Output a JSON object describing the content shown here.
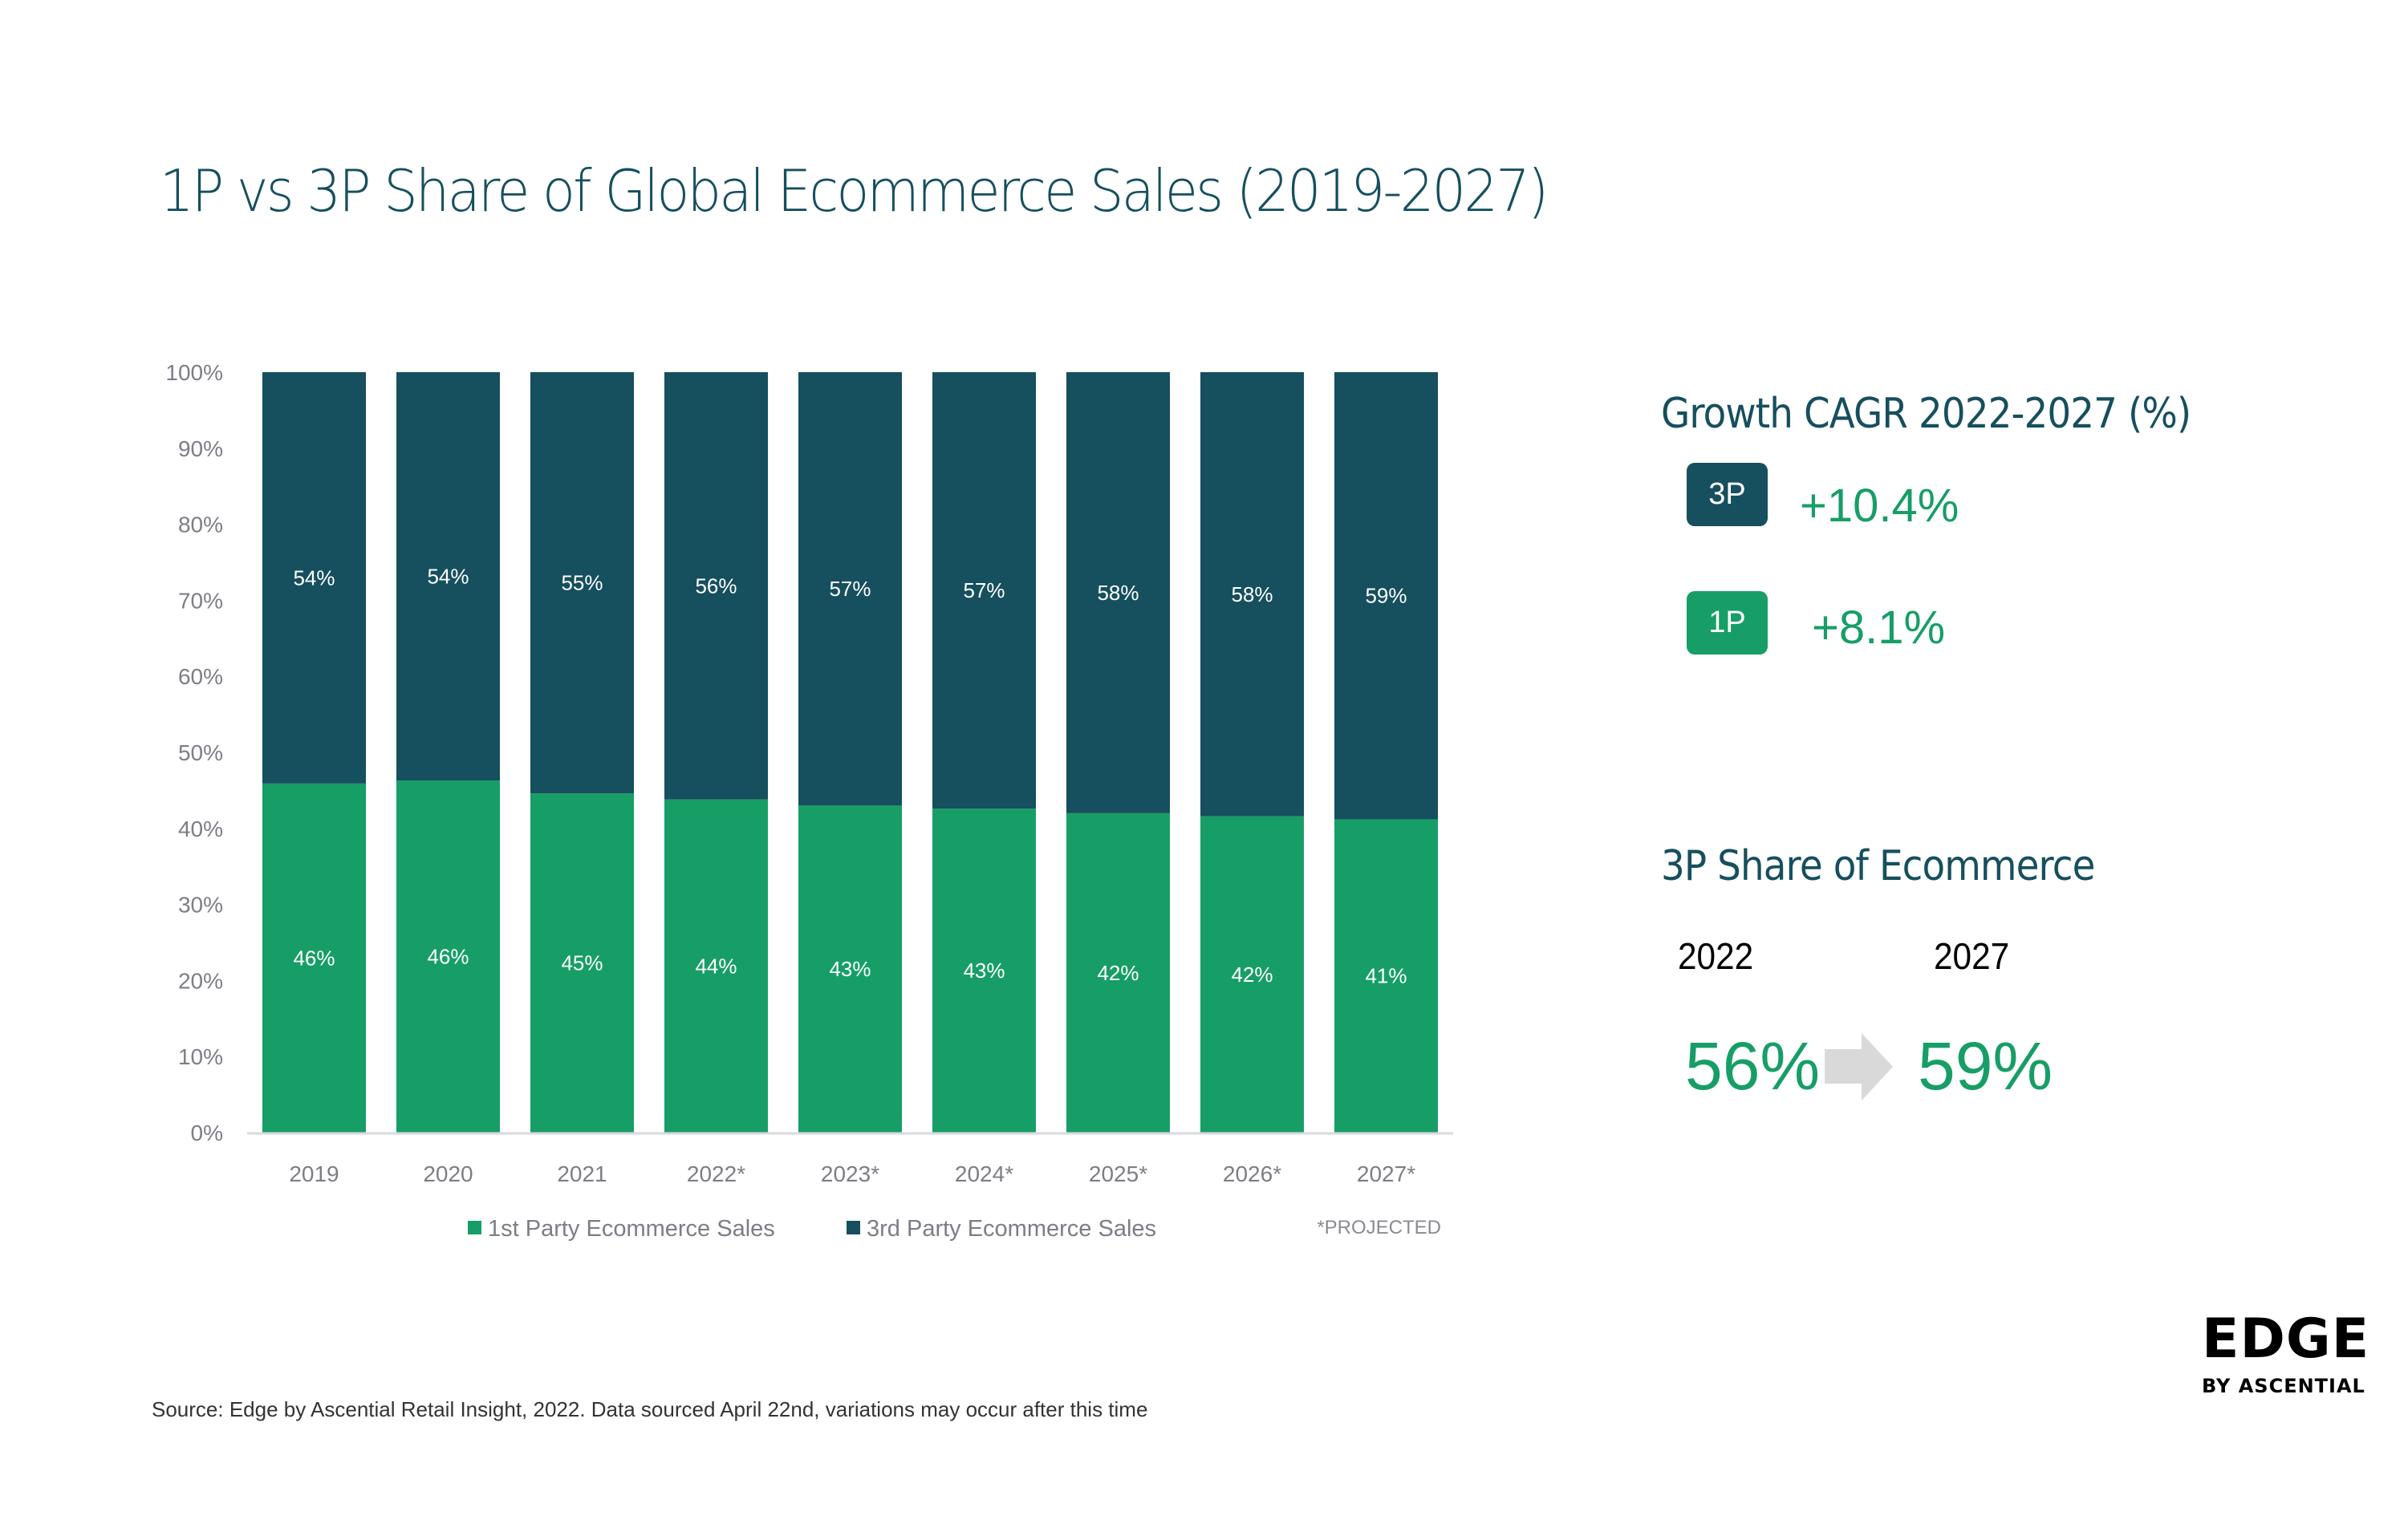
{
  "title": "1P vs 3P Share of Global Ecommerce Sales (2019-2027)",
  "colors": {
    "first_party": "#179e66",
    "third_party": "#164f5e",
    "title": "#164f5e",
    "axis_text": "#7d7d86",
    "arrow": "#d9d9d9"
  },
  "chart_data": {
    "type": "bar",
    "stacked": true,
    "percent_stacked": true,
    "title": "1P vs 3P Share of Global Ecommerce Sales (2019-2027)",
    "xlabel": "",
    "ylabel": "",
    "ylim": [
      0,
      100
    ],
    "yticks": [
      0,
      10,
      20,
      30,
      40,
      50,
      60,
      70,
      80,
      90,
      100
    ],
    "ytick_labels": [
      "0%",
      "10%",
      "20%",
      "30%",
      "40%",
      "50%",
      "60%",
      "70%",
      "80%",
      "90%",
      "100%"
    ],
    "categories": [
      "2019",
      "2020",
      "2021",
      "2022*",
      "2023*",
      "2024*",
      "2025*",
      "2026*",
      "2027*"
    ],
    "grid": false,
    "legend_position": "bottom",
    "series": [
      {
        "name": "1st Party Ecommerce Sales",
        "color": "#179e66",
        "values": [
          45.9,
          46.3,
          44.6,
          43.8,
          43.0,
          42.6,
          42.0,
          41.6,
          41.2
        ],
        "labels": [
          "46%",
          "46%",
          "45%",
          "44%",
          "43%",
          "43%",
          "42%",
          "42%",
          "41%"
        ]
      },
      {
        "name": "3rd Party Ecommerce Sales",
        "color": "#164f5e",
        "values": [
          54.1,
          53.7,
          55.4,
          56.2,
          57.0,
          57.4,
          58.0,
          58.4,
          58.8
        ],
        "labels": [
          "54%",
          "54%",
          "55%",
          "56%",
          "57%",
          "57%",
          "58%",
          "58%",
          "59%"
        ]
      }
    ],
    "annotations": [
      "*PROJECTED"
    ]
  },
  "sidebar": {
    "cagr_heading": "Growth CAGR 2022-2027 (%)",
    "cagr": [
      {
        "badge": "3P",
        "value": "+10.4%",
        "color": "#164f5e"
      },
      {
        "badge": "1P",
        "value": "+8.1%",
        "color": "#179e66"
      }
    ],
    "share_heading": "3P Share of Ecommerce",
    "share_from_year": "2022",
    "share_to_year": "2027",
    "share_from_value": "56%",
    "share_to_value": "59%"
  },
  "footer": {
    "source": "Source: Edge by Ascential Retail Insight, 2022. Data sourced April 22nd, variations may occur after this time",
    "logo_main": "EDGE",
    "logo_sub": "BY ASCENTIAL"
  }
}
